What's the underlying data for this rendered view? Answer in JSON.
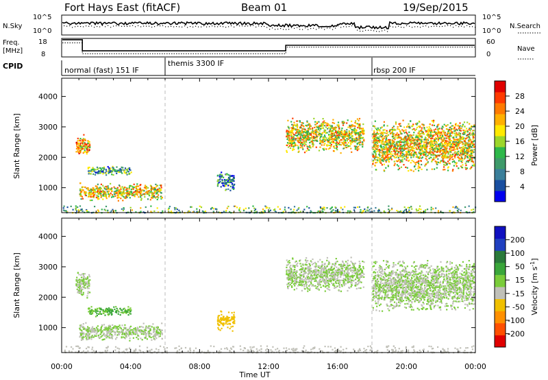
{
  "header": {
    "title": "Fort Hays East (fitACF)",
    "beam": "Beam 01",
    "date": "19/Sep/2015"
  },
  "noise_panel": {
    "left_label": "N.Sky",
    "right_label": "N.Search",
    "left_ticks": [
      "10^5",
      "10^0"
    ],
    "right_ticks": [
      "10^5",
      "10^0"
    ]
  },
  "freq_panel": {
    "left_label_line1": "Freq.",
    "left_label_line2": "[MHz]",
    "right_label": "Nave",
    "left_ticks": [
      "18",
      "8"
    ],
    "right_ticks": [
      "60",
      "0"
    ]
  },
  "cpid": {
    "label": "CPID",
    "segments": [
      {
        "text": "normal (fast) 151 IF",
        "start_hour": 0
      },
      {
        "text": "themis 3300 IF",
        "start_hour": 6
      },
      {
        "text": "rbsp 200 IF",
        "start_hour": 18
      }
    ]
  },
  "x_axis": {
    "label": "Time UT",
    "ticks": [
      "00:00",
      "04:00",
      "08:00",
      "12:00",
      "16:00",
      "20:00",
      "00:00"
    ],
    "range_hours": [
      0,
      24
    ],
    "divider_hours": [
      6,
      18
    ]
  },
  "y_axis": {
    "label": "Slant Range [km]",
    "ticks": [
      "4000",
      "3000",
      "2000",
      "1000"
    ],
    "tick_values": [
      4000,
      3000,
      2000,
      1000
    ],
    "range_km": [
      180,
      4600
    ]
  },
  "power_scale": {
    "title": "Power [dB]",
    "ticks": [
      "28",
      "24",
      "20",
      "16",
      "12",
      "8",
      "4"
    ],
    "colors": [
      "#0000ee",
      "#1a4fa0",
      "#3a7f9a",
      "#3e9a6a",
      "#2eb84a",
      "#9cd62a",
      "#ffe900",
      "#ffb000",
      "#ff7a00",
      "#ff3a00",
      "#e00000"
    ]
  },
  "velocity_scale": {
    "title_main": "Velocity [m s",
    "title_sup": "-1",
    "title_end": "]",
    "ticks": [
      "200",
      "100",
      "50",
      "15",
      "-15",
      "-50",
      "-100",
      "-200"
    ],
    "colors": [
      "#1010c0",
      "#2040c0",
      "#2a7a3a",
      "#3aa63a",
      "#7acc3a",
      "#c0c0b8",
      "#f0c000",
      "#ff9000",
      "#ff5000",
      "#e00000"
    ]
  },
  "chart_data": {
    "type": "heatmap",
    "title": "Fort Hays East (fitACF)",
    "xlabel": "Time UT",
    "ylabel": "Slant Range [km]",
    "xlim_hours": [
      0,
      24
    ],
    "ylim_km": [
      180,
      4600
    ],
    "panels": [
      {
        "name": "Power [dB]",
        "scale": [
          0,
          30
        ],
        "echo_regions": [
          {
            "t": [
              0.8,
              1.6
            ],
            "r": [
              2100,
              2700
            ],
            "v": 20
          },
          {
            "t": [
              1.0,
              5.8
            ],
            "r": [
              650,
              1100
            ],
            "v": 18
          },
          {
            "t": [
              1.5,
              4.0
            ],
            "r": [
              1450,
              1700
            ],
            "v": 10
          },
          {
            "t": [
              9.0,
              10.0
            ],
            "r": [
              1000,
              1500
            ],
            "v": 8
          },
          {
            "t": [
              13.0,
              17.5
            ],
            "r": [
              2300,
              3200
            ],
            "v": 18
          },
          {
            "t": [
              18.0,
              23.9
            ],
            "r": [
              1700,
              3100
            ],
            "v": 18
          },
          {
            "t": [
              0,
              24
            ],
            "r": [
              200,
              420
            ],
            "v": 12
          }
        ]
      },
      {
        "name": "Velocity [m s-1]",
        "scale": [
          -200,
          200
        ],
        "echo_regions": [
          {
            "t": [
              0.8,
              1.6
            ],
            "r": [
              2100,
              2800
            ],
            "v": 0
          },
          {
            "t": [
              1.0,
              5.8
            ],
            "r": [
              650,
              1100
            ],
            "v": 0
          },
          {
            "t": [
              1.5,
              4.0
            ],
            "r": [
              1450,
              1700
            ],
            "v": 40
          },
          {
            "t": [
              9.0,
              10.0
            ],
            "r": [
              1000,
              1500
            ],
            "v": -60
          },
          {
            "t": [
              13.0,
              17.5
            ],
            "r": [
              2300,
              3200
            ],
            "v": 0
          },
          {
            "t": [
              18.0,
              23.9
            ],
            "r": [
              1700,
              3100
            ],
            "v": 0
          },
          {
            "t": [
              0,
              24
            ],
            "r": [
              200,
              420
            ],
            "v": -20
          }
        ]
      }
    ]
  }
}
